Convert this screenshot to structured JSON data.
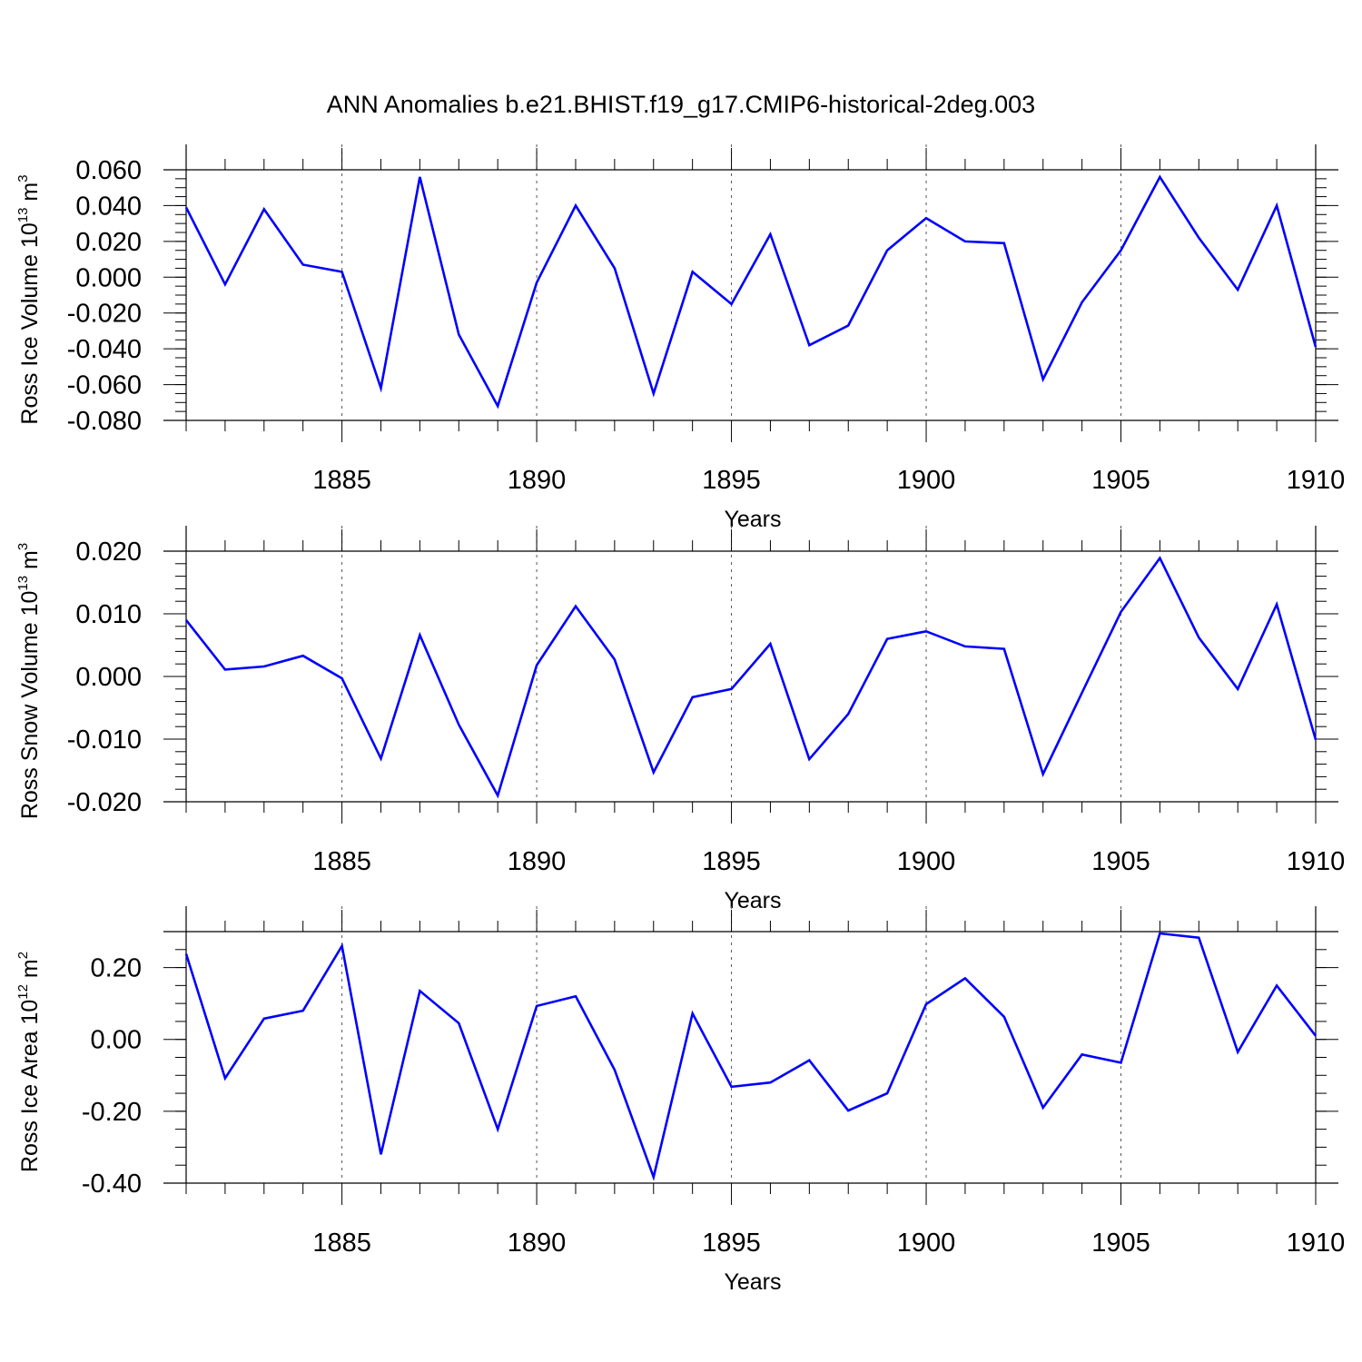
{
  "figure_title": "ANN Anomalies b.e21.BHIST.f19_g17.CMIP6-historical-2deg.003",
  "line_color": "#0000ff",
  "chart_data": [
    {
      "type": "line",
      "name": "ross-ice-volume",
      "ylabel_main": "Ross Ice Volume 10",
      "ylabel_exp": "13",
      "ylabel_unit": " m",
      "ylabel_unit_exp": "3",
      "xlabel": "Years",
      "xlim": [
        1881,
        1910
      ],
      "ylim": [
        -0.08,
        0.06
      ],
      "yticks": [
        0.06,
        0.04,
        0.02,
        0.0,
        -0.02,
        -0.04,
        -0.06,
        -0.08
      ],
      "ytick_labels": [
        "0.060",
        "0.040",
        "0.020",
        "0.000",
        "-0.020",
        "-0.040",
        "-0.060",
        "-0.080"
      ],
      "yminor_step": 0.005,
      "xticks": [
        1885,
        1890,
        1895,
        1900,
        1905,
        1910
      ],
      "xtick_labels": [
        "1885",
        "1890",
        "1895",
        "1900",
        "1905",
        "1910"
      ],
      "gridlines_x": [
        1885,
        1890,
        1895,
        1900,
        1905
      ],
      "x": [
        1881,
        1882,
        1883,
        1884,
        1885,
        1886,
        1887,
        1888,
        1889,
        1890,
        1891,
        1892,
        1893,
        1894,
        1895,
        1896,
        1897,
        1898,
        1899,
        1900,
        1901,
        1902,
        1903,
        1904,
        1905,
        1906,
        1907,
        1908,
        1909,
        1910
      ],
      "values": [
        0.039,
        -0.004,
        0.038,
        0.007,
        0.003,
        -0.062,
        0.056,
        -0.032,
        -0.072,
        -0.003,
        0.04,
        0.005,
        -0.065,
        0.003,
        -0.015,
        0.024,
        -0.038,
        -0.027,
        0.015,
        0.033,
        0.02,
        0.019,
        -0.057,
        -0.014,
        0.015,
        0.056,
        0.022,
        -0.007,
        0.04,
        -0.039
      ]
    },
    {
      "type": "line",
      "name": "ross-snow-volume",
      "ylabel_main": "Ross Snow Volume 10",
      "ylabel_exp": "13",
      "ylabel_unit": " m",
      "ylabel_unit_exp": "3",
      "xlabel": "Years",
      "xlim": [
        1881,
        1910
      ],
      "ylim": [
        -0.02,
        0.02
      ],
      "yticks": [
        0.02,
        0.01,
        0.0,
        -0.01,
        -0.02
      ],
      "ytick_labels": [
        "0.020",
        "0.010",
        "0.000",
        "-0.010",
        "-0.020"
      ],
      "yminor_step": 0.002,
      "xticks": [
        1885,
        1890,
        1895,
        1900,
        1905,
        1910
      ],
      "xtick_labels": [
        "1885",
        "1890",
        "1895",
        "1900",
        "1905",
        "1910"
      ],
      "gridlines_x": [
        1885,
        1890,
        1895,
        1900,
        1905
      ],
      "x": [
        1881,
        1882,
        1883,
        1884,
        1885,
        1886,
        1887,
        1888,
        1889,
        1890,
        1891,
        1892,
        1893,
        1894,
        1895,
        1896,
        1897,
        1898,
        1899,
        1900,
        1901,
        1902,
        1903,
        1904,
        1905,
        1906,
        1907,
        1908,
        1909,
        1910
      ],
      "values": [
        0.009,
        0.0011,
        0.0016,
        0.0033,
        -0.0003,
        -0.0131,
        0.0066,
        -0.0077,
        -0.019,
        0.0018,
        0.0112,
        0.0027,
        -0.0153,
        -0.0033,
        -0.002,
        0.0052,
        -0.0132,
        -0.006,
        0.006,
        0.0072,
        0.0048,
        0.0044,
        -0.0156,
        -0.0026,
        0.0103,
        0.0189,
        0.0062,
        -0.002,
        0.0115,
        -0.0101
      ]
    },
    {
      "type": "line",
      "name": "ross-ice-area",
      "ylabel_main": "Ross Ice Area 10",
      "ylabel_exp": "12",
      "ylabel_unit": " m",
      "ylabel_unit_exp": "2",
      "xlabel": "Years",
      "xlim": [
        1881,
        1910
      ],
      "ylim": [
        -0.4,
        0.3
      ],
      "yticks": [
        0.2,
        0.0,
        -0.2,
        -0.4
      ],
      "ytick_labels": [
        "0.20",
        "0.00",
        "-0.20",
        "-0.40"
      ],
      "yminor_step": 0.05,
      "xticks": [
        1885,
        1890,
        1895,
        1900,
        1905,
        1910
      ],
      "xtick_labels": [
        "1885",
        "1890",
        "1895",
        "1900",
        "1905",
        "1910"
      ],
      "gridlines_x": [
        1885,
        1890,
        1895,
        1900,
        1905
      ],
      "x": [
        1881,
        1882,
        1883,
        1884,
        1885,
        1886,
        1887,
        1888,
        1889,
        1890,
        1891,
        1892,
        1893,
        1894,
        1895,
        1896,
        1897,
        1898,
        1899,
        1900,
        1901,
        1902,
        1903,
        1904,
        1905,
        1906,
        1907,
        1908,
        1909,
        1910
      ],
      "values": [
        0.238,
        -0.108,
        0.058,
        0.08,
        0.26,
        -0.32,
        0.135,
        0.045,
        -0.25,
        0.093,
        0.12,
        -0.085,
        -0.383,
        0.072,
        -0.132,
        -0.12,
        -0.058,
        -0.198,
        -0.15,
        0.098,
        0.17,
        0.063,
        -0.19,
        -0.042,
        -0.065,
        0.295,
        0.283,
        -0.035,
        0.15,
        0.01
      ]
    }
  ]
}
